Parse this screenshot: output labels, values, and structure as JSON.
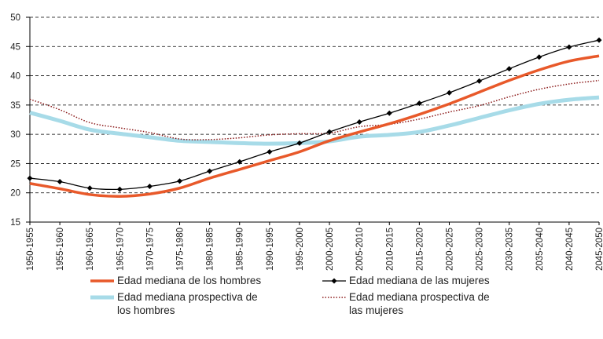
{
  "chart_data": {
    "type": "line",
    "categories": [
      "1950-1955",
      "1955-1960",
      "1960-1965",
      "1965-1970",
      "1970-1975",
      "1975-1980",
      "1980-1985",
      "1985-1990",
      "1990-1995",
      "1995-2000",
      "2000-2005",
      "2005-2010",
      "2010-2015",
      "2015-2020",
      "2020-2025",
      "2025-2030",
      "2030-2035",
      "2035-2040",
      "2040-2045",
      "2045-2050"
    ],
    "ylim": [
      15,
      50
    ],
    "yticks": [
      15,
      20,
      25,
      30,
      35,
      40,
      45,
      50
    ],
    "grid": true,
    "series": [
      {
        "name": "Edad mediana de los hombres",
        "color": "#e8592a",
        "style": "solid",
        "values": [
          21.6,
          20.7,
          19.7,
          19.4,
          19.8,
          20.8,
          22.5,
          24.0,
          25.5,
          27.0,
          28.9,
          30.4,
          31.8,
          33.4,
          35.2,
          37.2,
          39.2,
          41.0,
          42.5,
          43.4
        ]
      },
      {
        "name": "Edad mediana de las mujeres",
        "color": "#000000",
        "style": "markers",
        "values": [
          22.5,
          21.9,
          20.8,
          20.6,
          21.1,
          22.0,
          23.7,
          25.3,
          27.0,
          28.5,
          30.4,
          32.1,
          33.6,
          35.3,
          37.1,
          39.1,
          41.2,
          43.2,
          44.9,
          46.1
        ]
      },
      {
        "name": "Edad mediana prospectiva de los hombres",
        "color": "#a7dbe8",
        "style": "thick",
        "values": [
          33.7,
          32.3,
          30.8,
          30.1,
          29.5,
          28.9,
          28.7,
          28.5,
          28.4,
          28.5,
          28.8,
          29.6,
          29.9,
          30.4,
          31.5,
          32.8,
          34.1,
          35.2,
          35.9,
          36.3
        ]
      },
      {
        "name": "Edad mediana prospectiva de las mujeres",
        "color": "#8b1a1a",
        "style": "dotted",
        "values": [
          36.0,
          34.2,
          32.0,
          31.1,
          30.3,
          29.2,
          29.1,
          29.4,
          29.9,
          30.1,
          30.2,
          31.3,
          31.7,
          32.6,
          33.8,
          34.9,
          36.4,
          37.7,
          38.6,
          39.2
        ]
      }
    ]
  }
}
